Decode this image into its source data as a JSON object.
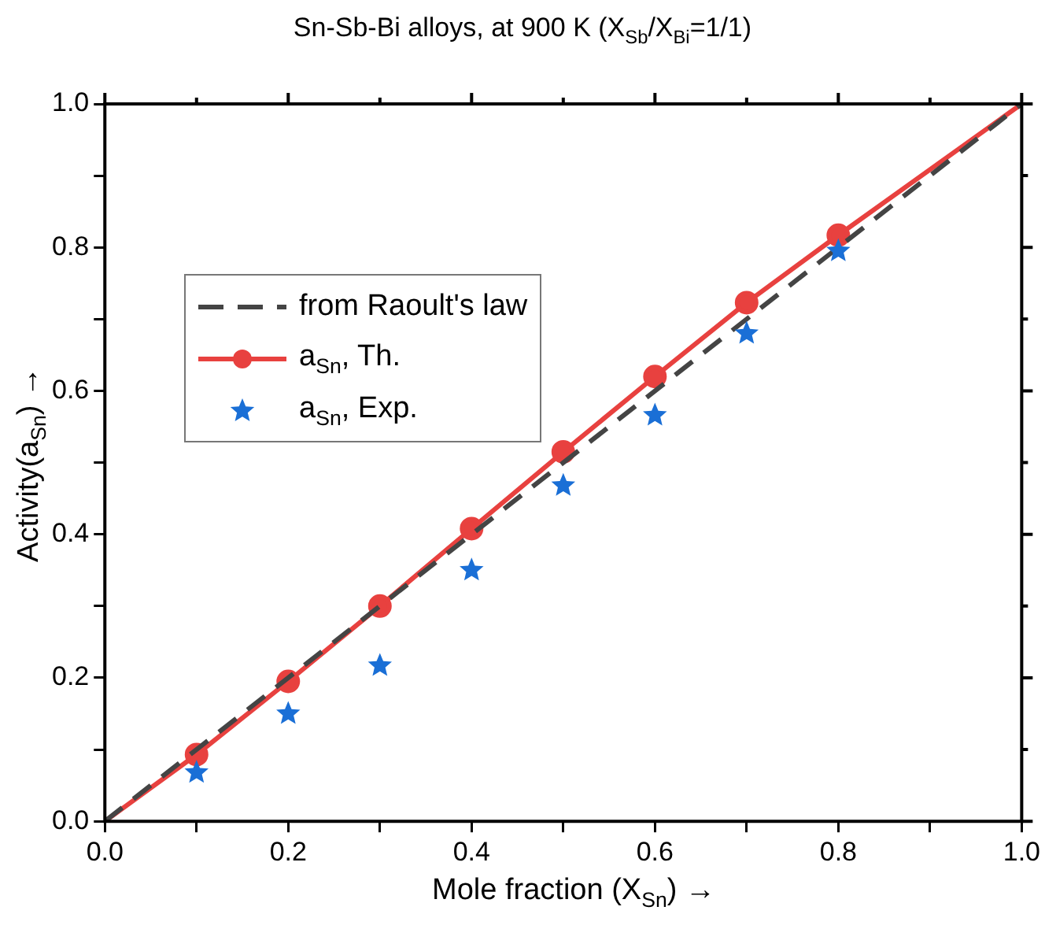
{
  "chart_data": {
    "type": "line",
    "title": "Sn-Sb-Bi alloys, at 900 K (X$_{Sb}$/X$_{Bi}$=1/1)",
    "xlabel": "Mole fraction (X$_{Sn}$) →",
    "ylabel": "Activity(a$_{Sn}$) →",
    "xlim": [
      0,
      1
    ],
    "ylim": [
      0,
      1
    ],
    "xticks": [
      {
        "value": 0,
        "label": "0.0"
      },
      {
        "value": 0.1,
        "label": null
      },
      0.2,
      {
        "value": 0.3,
        "label": null
      },
      0.4,
      {
        "value": 0.5,
        "label": null
      },
      0.6,
      {
        "value": 0.7,
        "label": null
      },
      0.8,
      {
        "value": 0.9,
        "label": null
      },
      {
        "value": 1,
        "label": "1.0"
      }
    ],
    "yticks": [
      {
        "value": 0,
        "label": "0.0"
      },
      {
        "value": 0.1,
        "label": null
      },
      0.2,
      {
        "value": 0.3,
        "label": null
      },
      0.4,
      {
        "value": 0.5,
        "label": null
      },
      0.6,
      {
        "value": 0.7,
        "label": null
      },
      0.8,
      {
        "value": 0.9,
        "label": null
      },
      {
        "value": 1,
        "label": "1.0"
      }
    ],
    "legend": "top left",
    "grid": false,
    "series": [
      {
        "name": "from Raoult's law",
        "color": "#444444",
        "line_style": "dashed",
        "marker": "none",
        "x": [
          0,
          1
        ],
        "values": [
          0,
          1
        ]
      },
      {
        "name": "a$_{Sn}$, Th.",
        "color": "#e8413f",
        "line_style": "solid",
        "marker": "circle",
        "x": [
          0,
          0.1,
          0.2,
          0.3,
          0.4,
          0.5,
          0.6,
          0.7,
          0.8,
          1
        ],
        "values": [
          0,
          0.093,
          0.195,
          0.3,
          0.408,
          0.515,
          0.62,
          0.723,
          0.817,
          1
        ]
      },
      {
        "name": "a$_{Sn}$, Exp.",
        "type": "scatter",
        "color": "#1a6fd6",
        "marker": "star",
        "x": [
          0.1,
          0.2,
          0.3,
          0.4,
          0.5,
          0.6,
          0.7,
          0.8
        ],
        "values": [
          0.068,
          0.15,
          0.217,
          0.35,
          0.468,
          0.566,
          0.68,
          0.795
        ]
      }
    ]
  }
}
